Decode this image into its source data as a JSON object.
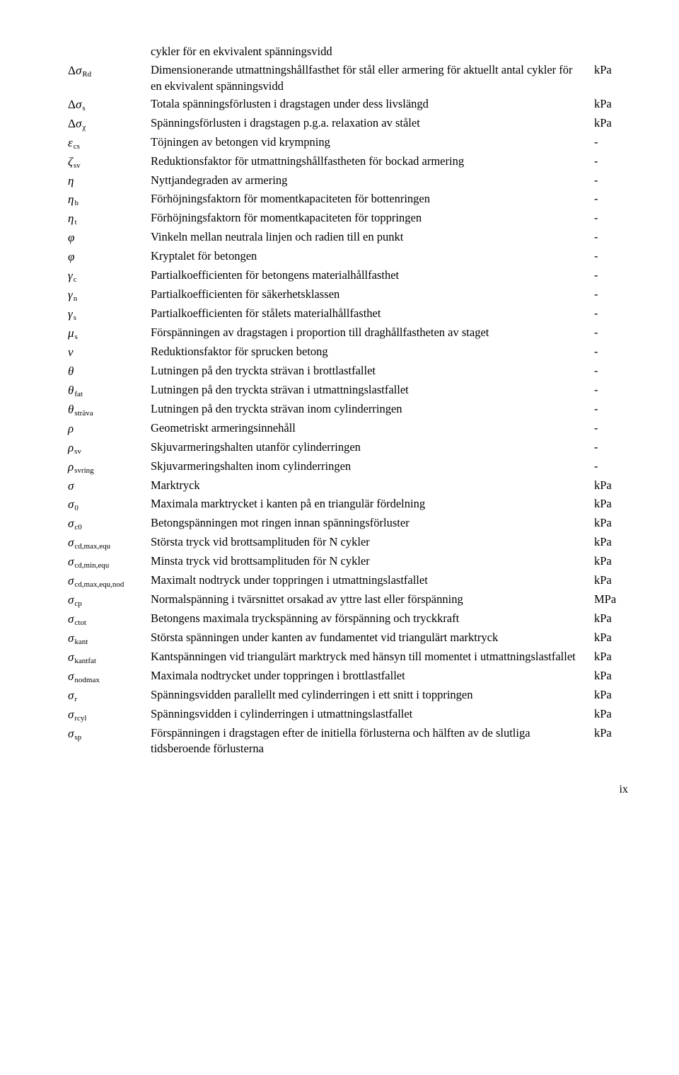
{
  "top_line": "cykler för en ekvivalent spänningsvidd",
  "rows": [
    {
      "delta": true,
      "sym": "σ",
      "sub": "Rd",
      "subItalic": false,
      "desc": "Dimensionerande utmattningshållfasthet för stål eller armering för aktuellt antal cykler för en ekvivalent spänningsvidd",
      "unit": "kPa"
    },
    {
      "delta": true,
      "sym": "σ",
      "sub": "s",
      "subItalic": false,
      "desc": "Totala spänningsförlusten i dragstagen under dess livslängd",
      "unit": "kPa"
    },
    {
      "delta": true,
      "sym": "σ",
      "sub": "χ",
      "subItalic": false,
      "desc": "Spänningsförlusten i dragstagen p.g.a. relaxation av stålet",
      "unit": "kPa"
    },
    {
      "delta": false,
      "sym": "ε",
      "sub": "cs",
      "subItalic": false,
      "desc": "Töjningen av betongen vid krympning",
      "unit": "-"
    },
    {
      "delta": false,
      "sym": "ζ",
      "sub": "sv",
      "subItalic": false,
      "desc": "Reduktionsfaktor för utmattningshållfastheten för bockad armering",
      "unit": "-"
    },
    {
      "delta": false,
      "sym": "η",
      "sub": "",
      "subItalic": false,
      "desc": "Nyttjandegraden av armering",
      "unit": "-"
    },
    {
      "delta": false,
      "sym": "η",
      "sub": "b",
      "subItalic": false,
      "desc": "Förhöjningsfaktorn för momentkapaciteten för bottenringen",
      "unit": "-"
    },
    {
      "delta": false,
      "sym": "η",
      "sub": "t",
      "subItalic": false,
      "desc": "Förhöjningsfaktorn för momentkapaciteten för toppringen",
      "unit": "-"
    },
    {
      "delta": false,
      "sym": "φ",
      "sub": "",
      "subItalic": false,
      "desc": "Vinkeln mellan neutrala linjen och radien till en punkt",
      "unit": "-"
    },
    {
      "delta": false,
      "sym": "φ",
      "sub": "",
      "subItalic": false,
      "desc": "Kryptalet för betongen",
      "unit": "-"
    },
    {
      "delta": false,
      "sym": "γ",
      "sub": "c",
      "subItalic": false,
      "desc": "Partialkoefficienten för betongens materialhållfasthet",
      "unit": "-"
    },
    {
      "delta": false,
      "sym": "γ",
      "sub": "n",
      "subItalic": false,
      "desc": "Partialkoefficienten för säkerhetsklassen",
      "unit": "-"
    },
    {
      "delta": false,
      "sym": "γ",
      "sub": "s",
      "subItalic": false,
      "desc": "Partialkoefficienten för stålets materialhållfasthet",
      "unit": "-"
    },
    {
      "delta": false,
      "sym": "μ",
      "sub": "s",
      "subItalic": false,
      "desc": "Förspänningen av dragstagen i proportion till draghållfastheten av staget",
      "unit": "-"
    },
    {
      "delta": false,
      "sym": "ν",
      "sub": "",
      "subItalic": false,
      "desc": "Reduktionsfaktor för sprucken betong",
      "unit": "-"
    },
    {
      "delta": false,
      "sym": "θ",
      "sub": "",
      "subItalic": false,
      "desc": "Lutningen på den tryckta strävan i brottlastfallet",
      "unit": "-"
    },
    {
      "delta": false,
      "sym": "θ",
      "sub": "fat",
      "subItalic": true,
      "desc": "Lutningen på den tryckta strävan i utmattningslastfallet",
      "unit": "-"
    },
    {
      "delta": false,
      "sym": "θ",
      "sub": "sträva",
      "subItalic": true,
      "desc": "Lutningen på den tryckta strävan inom cylinderringen",
      "unit": "-"
    },
    {
      "delta": false,
      "sym": "ρ",
      "sub": "",
      "subItalic": false,
      "desc": "Geometriskt armeringsinnehåll",
      "unit": "-"
    },
    {
      "delta": false,
      "sym": "ρ",
      "sub": "sv",
      "subItalic": false,
      "desc": "Skjuvarmeringshalten utanför cylinderringen",
      "unit": "-"
    },
    {
      "delta": false,
      "sym": "ρ",
      "sub": "svring",
      "subItalic": false,
      "desc": "Skjuvarmeringshalten inom cylinderringen",
      "unit": "-"
    },
    {
      "delta": false,
      "sym": "σ",
      "sub": "",
      "subItalic": false,
      "desc": "Marktryck",
      "unit": "kPa"
    },
    {
      "delta": false,
      "sym": "σ",
      "sub": "0",
      "subItalic": false,
      "desc": "Maximala marktrycket i kanten på en triangulär fördelning",
      "unit": "kPa"
    },
    {
      "delta": false,
      "sym": "σ",
      "sub": "c0",
      "subItalic": false,
      "desc": "Betongspänningen mot ringen innan spänningsförluster",
      "unit": "kPa"
    },
    {
      "delta": false,
      "sym": "σ",
      "sub": "cd,max,equ",
      "subItalic": false,
      "desc": "Största tryck vid brottsamplituden för N cykler",
      "unit": "kPa"
    },
    {
      "delta": false,
      "sym": "σ",
      "sub": "cd,min,equ",
      "subItalic": false,
      "desc": "Minsta tryck vid brottsamplituden för N cykler",
      "unit": "kPa"
    },
    {
      "delta": false,
      "sym": "σ",
      "sub": "cd,max,equ,nod",
      "subItalic": false,
      "desc": "Maximalt nodtryck under toppringen i utmattningslastfallet",
      "unit": "kPa"
    },
    {
      "delta": false,
      "sym": "σ",
      "sub": "cp",
      "subItalic": false,
      "desc": "Normalspänning i tvärsnittet orsakad av yttre last eller förspänning",
      "unit": "MPa"
    },
    {
      "delta": false,
      "sym": "σ",
      "sub": "ctot",
      "subItalic": false,
      "desc": "Betongens maximala tryckspänning av förspänning och tryckkraft",
      "unit": "kPa"
    },
    {
      "delta": false,
      "sym": "σ",
      "sub": "kant",
      "subItalic": false,
      "desc": "Största spänningen under kanten av fundamentet vid triangulärt marktryck",
      "unit": "kPa"
    },
    {
      "delta": false,
      "sym": "σ",
      "sub": "kantfat",
      "subItalic": false,
      "desc": "Kantspänningen vid triangulärt marktryck med hänsyn till momentet i utmattningslastfallet",
      "unit": "kPa"
    },
    {
      "delta": false,
      "sym": "σ",
      "sub": "nodmax",
      "subItalic": false,
      "desc": "Maximala nodtrycket under toppringen i brottlastfallet",
      "unit": "kPa"
    },
    {
      "delta": false,
      "sym": "σ",
      "sub": "r",
      "subItalic": false,
      "desc": "Spänningsvidden parallellt med cylinderringen i ett snitt i toppringen",
      "unit": "kPa"
    },
    {
      "delta": false,
      "sym": "σ",
      "sub": "rcyl",
      "subItalic": false,
      "desc": "Spänningsvidden i cylinderringen i utmattningslastfallet",
      "unit": "kPa"
    },
    {
      "delta": false,
      "sym": "σ",
      "sub": "sp",
      "subItalic": false,
      "desc": "Förspänningen i dragstagen efter de initiella förlusterna och hälften av de slutliga tidsberoende förlusterna",
      "unit": "kPa"
    }
  ],
  "page_num": "ix"
}
